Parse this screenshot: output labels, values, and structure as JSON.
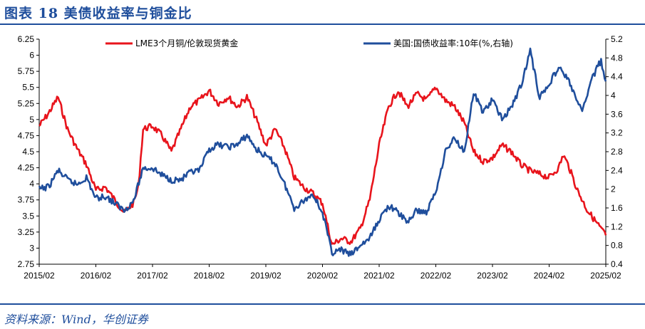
{
  "header": {
    "title": "图表 18    美债收益率与铜金比"
  },
  "footer": {
    "source": "资料来源：Wind，华创证券"
  },
  "chart_data": {
    "type": "line",
    "x_labels": [
      "2015/02",
      "2016/02",
      "2017/02",
      "2018/02",
      "2019/02",
      "2020/02",
      "2021/02",
      "2022/02",
      "2023/02",
      "2024/02",
      "2025/02"
    ],
    "x_range": [
      "2015-02",
      "2025-02"
    ],
    "y_left": {
      "range": [
        2.75,
        6.25
      ],
      "ticks": [
        "2.75",
        "3",
        "3.25",
        "3.5",
        "3.75",
        "4",
        "4.25",
        "4.5",
        "4.75",
        "5",
        "5.25",
        "5.5",
        "5.75",
        "6",
        "6.25"
      ]
    },
    "y_right": {
      "range": [
        0.4,
        5.2
      ],
      "ticks": [
        "0.4",
        "0.8",
        "1.2",
        "1.6",
        "2",
        "2.4",
        "2.8",
        "3.2",
        "3.6",
        "4",
        "4.4",
        "4.8",
        "5.2"
      ]
    },
    "grid": false,
    "legend_position": "top",
    "series": [
      {
        "name": "LME3个月铜/伦敦现货黄金",
        "axis": "left",
        "color": "#e8141c",
        "points": [
          [
            "2015-02",
            4.9
          ],
          [
            "2015-04",
            5.1
          ],
          [
            "2015-06",
            5.35
          ],
          [
            "2015-08",
            4.85
          ],
          [
            "2015-10",
            4.55
          ],
          [
            "2015-12",
            4.3
          ],
          [
            "2016-02",
            3.9
          ],
          [
            "2016-04",
            3.95
          ],
          [
            "2016-06",
            3.75
          ],
          [
            "2016-08",
            3.55
          ],
          [
            "2016-10",
            3.7
          ],
          [
            "2016-11",
            3.95
          ],
          [
            "2016-12",
            4.85
          ],
          [
            "2017-02",
            4.9
          ],
          [
            "2017-04",
            4.75
          ],
          [
            "2017-06",
            4.5
          ],
          [
            "2017-08",
            4.85
          ],
          [
            "2017-10",
            5.2
          ],
          [
            "2017-12",
            5.3
          ],
          [
            "2018-02",
            5.45
          ],
          [
            "2018-04",
            5.25
          ],
          [
            "2018-06",
            5.35
          ],
          [
            "2018-08",
            5.2
          ],
          [
            "2018-10",
            5.35
          ],
          [
            "2018-12",
            5.0
          ],
          [
            "2019-02",
            4.6
          ],
          [
            "2019-04",
            4.85
          ],
          [
            "2019-06",
            4.55
          ],
          [
            "2019-08",
            4.1
          ],
          [
            "2019-10",
            3.95
          ],
          [
            "2019-12",
            3.85
          ],
          [
            "2020-02",
            3.7
          ],
          [
            "2020-04",
            3.05
          ],
          [
            "2020-06",
            3.15
          ],
          [
            "2020-08",
            3.1
          ],
          [
            "2020-10",
            3.3
          ],
          [
            "2020-12",
            3.75
          ],
          [
            "2021-02",
            4.6
          ],
          [
            "2021-04",
            5.2
          ],
          [
            "2021-06",
            5.45
          ],
          [
            "2021-08",
            5.2
          ],
          [
            "2021-10",
            5.4
          ],
          [
            "2021-12",
            5.3
          ],
          [
            "2022-02",
            5.5
          ],
          [
            "2022-04",
            5.3
          ],
          [
            "2022-06",
            5.2
          ],
          [
            "2022-08",
            4.95
          ],
          [
            "2022-10",
            4.5
          ],
          [
            "2022-12",
            4.35
          ],
          [
            "2023-02",
            4.4
          ],
          [
            "2023-04",
            4.6
          ],
          [
            "2023-06",
            4.5
          ],
          [
            "2023-08",
            4.3
          ],
          [
            "2023-10",
            4.2
          ],
          [
            "2023-12",
            4.15
          ],
          [
            "2024-02",
            4.1
          ],
          [
            "2024-04",
            4.25
          ],
          [
            "2024-05",
            4.45
          ],
          [
            "2024-06",
            4.3
          ],
          [
            "2024-08",
            3.9
          ],
          [
            "2024-10",
            3.6
          ],
          [
            "2024-12",
            3.4
          ],
          [
            "2025-02",
            3.2
          ]
        ]
      },
      {
        "name": "美国:国债收益率:10年(%,右轴)",
        "axis": "right",
        "color": "#1f4e9c",
        "points": [
          [
            "2015-02",
            2.0
          ],
          [
            "2015-04",
            2.05
          ],
          [
            "2015-06",
            2.4
          ],
          [
            "2015-08",
            2.2
          ],
          [
            "2015-10",
            2.1
          ],
          [
            "2015-12",
            2.25
          ],
          [
            "2016-02",
            1.8
          ],
          [
            "2016-04",
            1.85
          ],
          [
            "2016-06",
            1.7
          ],
          [
            "2016-08",
            1.55
          ],
          [
            "2016-10",
            1.75
          ],
          [
            "2016-12",
            2.45
          ],
          [
            "2017-02",
            2.45
          ],
          [
            "2017-04",
            2.3
          ],
          [
            "2017-06",
            2.2
          ],
          [
            "2017-08",
            2.2
          ],
          [
            "2017-10",
            2.35
          ],
          [
            "2017-12",
            2.4
          ],
          [
            "2018-02",
            2.85
          ],
          [
            "2018-04",
            2.95
          ],
          [
            "2018-06",
            2.9
          ],
          [
            "2018-08",
            2.95
          ],
          [
            "2018-10",
            3.15
          ],
          [
            "2018-12",
            2.85
          ],
          [
            "2019-02",
            2.7
          ],
          [
            "2019-04",
            2.55
          ],
          [
            "2019-06",
            2.1
          ],
          [
            "2019-08",
            1.6
          ],
          [
            "2019-10",
            1.75
          ],
          [
            "2019-12",
            1.9
          ],
          [
            "2020-02",
            1.5
          ],
          [
            "2020-04",
            0.65
          ],
          [
            "2020-06",
            0.7
          ],
          [
            "2020-08",
            0.6
          ],
          [
            "2020-10",
            0.8
          ],
          [
            "2020-12",
            0.95
          ],
          [
            "2021-02",
            1.35
          ],
          [
            "2021-04",
            1.65
          ],
          [
            "2021-06",
            1.5
          ],
          [
            "2021-08",
            1.3
          ],
          [
            "2021-10",
            1.55
          ],
          [
            "2021-12",
            1.5
          ],
          [
            "2022-02",
            1.95
          ],
          [
            "2022-04",
            2.8
          ],
          [
            "2022-06",
            3.1
          ],
          [
            "2022-08",
            2.8
          ],
          [
            "2022-10",
            4.05
          ],
          [
            "2022-12",
            3.65
          ],
          [
            "2023-02",
            3.9
          ],
          [
            "2023-04",
            3.5
          ],
          [
            "2023-06",
            3.75
          ],
          [
            "2023-08",
            4.2
          ],
          [
            "2023-10",
            4.95
          ],
          [
            "2023-12",
            3.95
          ],
          [
            "2024-02",
            4.25
          ],
          [
            "2024-04",
            4.6
          ],
          [
            "2024-06",
            4.35
          ],
          [
            "2024-08",
            3.85
          ],
          [
            "2024-09",
            3.65
          ],
          [
            "2024-11",
            4.35
          ],
          [
            "2025-01",
            4.75
          ],
          [
            "2025-02",
            4.3
          ]
        ]
      }
    ]
  }
}
